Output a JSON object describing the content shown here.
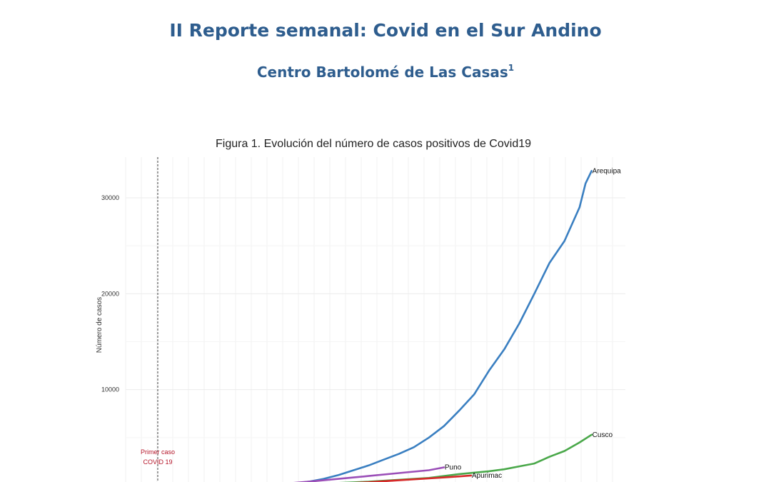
{
  "document": {
    "title": "II Reporte semanal: Covid en el Sur Andino",
    "subtitle": "Centro Bartolomé de Las Casas",
    "subtitle_footnote": "1"
  },
  "chart_data": {
    "type": "line",
    "title": "Figura 1. Evolución del número de casos positivos de Covid19",
    "xlabel": "",
    "ylabel": "Número de casos",
    "x_unit": "days",
    "xlim": [
      0,
      150
    ],
    "ylim": [
      0,
      34000
    ],
    "yticks": [
      10000,
      20000,
      30000
    ],
    "ytick_labels": [
      "10000",
      "20000",
      "30000"
    ],
    "grid": true,
    "annotation": {
      "x": 0,
      "line1": "Primer caso",
      "line2": "COVID 19",
      "color": "#b5162a"
    },
    "series": [
      {
        "name": "Arequipa",
        "color": "#3a7fc1",
        "x": [
          35,
          40,
          45,
          50,
          55,
          60,
          65,
          70,
          75,
          80,
          85,
          90,
          95,
          100,
          105,
          110,
          115,
          120,
          125,
          130,
          135,
          140,
          142,
          144
        ],
        "y": [
          0,
          100,
          200,
          400,
          700,
          1100,
          1600,
          2100,
          2700,
          3300,
          4000,
          5000,
          6200,
          7800,
          9500,
          12000,
          14200,
          16900,
          20000,
          23200,
          25500,
          29000,
          31500,
          32800
        ]
      },
      {
        "name": "Cusco",
        "color": "#4aa84a",
        "x": [
          30,
          50,
          70,
          90,
          100,
          110,
          115,
          120,
          125,
          130,
          135,
          140,
          144
        ],
        "y": [
          0,
          150,
          400,
          800,
          1200,
          1500,
          1700,
          2000,
          2300,
          3000,
          3600,
          4500,
          5300
        ]
      },
      {
        "name": "Puno",
        "color": "#9b4fb8",
        "x": [
          25,
          40,
          50,
          60,
          70,
          80,
          90,
          95
        ],
        "y": [
          0,
          150,
          400,
          700,
          1000,
          1300,
          1600,
          1900
        ]
      },
      {
        "name": "Apurimac",
        "color": "#d62a2a",
        "x": [
          30,
          50,
          60,
          70,
          80,
          90,
          100,
          104
        ],
        "y": [
          0,
          80,
          200,
          350,
          550,
          750,
          950,
          1050
        ]
      }
    ]
  }
}
